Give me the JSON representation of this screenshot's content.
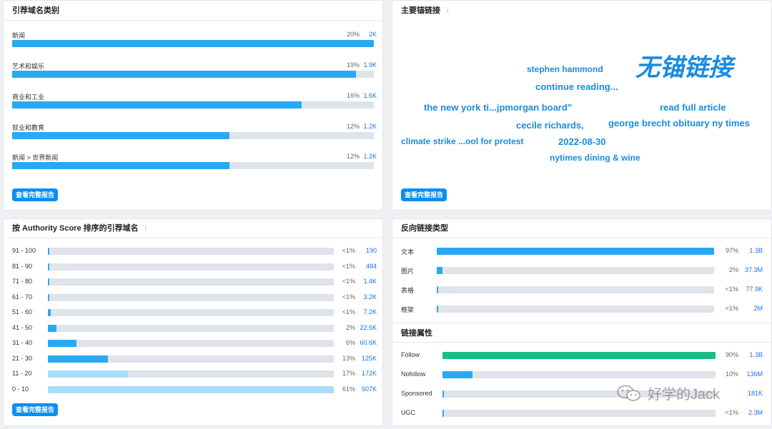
{
  "referring_categories": {
    "title": "引荐域名类别",
    "items": [
      {
        "label": "新闻",
        "percent": "20%",
        "value": "2K",
        "fill": 1.0
      },
      {
        "label": "艺术和娱乐",
        "percent": "19%",
        "value": "1.9K",
        "fill": 0.95
      },
      {
        "label": "商业和工业",
        "percent": "16%",
        "value": "1.6K",
        "fill": 0.8
      },
      {
        "label": "就业和教育",
        "percent": "12%",
        "value": "1.2K",
        "fill": 0.6
      },
      {
        "label": "新闻 > 世界新闻",
        "percent": "12%",
        "value": "1.2K",
        "fill": 0.6
      }
    ],
    "button": "查看完整报告"
  },
  "top_anchors": {
    "title": "主要锚链接",
    "info_icon": "i",
    "words": [
      {
        "text": "无锚链接"
      },
      {
        "text": "stephen hammond"
      },
      {
        "text": "continue reading..."
      },
      {
        "text": "the new york ti...jpmorgan board”"
      },
      {
        "text": "read full article"
      },
      {
        "text": "cecile richards,"
      },
      {
        "text": "george brecht obituary ny times"
      },
      {
        "text": "climate strike ...ool for protest"
      },
      {
        "text": "2022-08-30"
      },
      {
        "text": "nytimes dining & wine"
      }
    ],
    "button": "查看完整报告"
  },
  "authority": {
    "title": "按 Authority Score 排序的引荐域名",
    "info_icon": "i",
    "rows": [
      {
        "label": "91 - 100",
        "percent": "<1%",
        "value": "190",
        "fill": 0.005,
        "tone": "dark"
      },
      {
        "label": "81 - 90",
        "percent": "<1%",
        "value": "484",
        "fill": 0.005,
        "tone": "dark"
      },
      {
        "label": "71 - 80",
        "percent": "<1%",
        "value": "1.4K",
        "fill": 0.005,
        "tone": "dark"
      },
      {
        "label": "61 - 70",
        "percent": "<1%",
        "value": "3.2K",
        "fill": 0.006,
        "tone": "dark"
      },
      {
        "label": "51 - 60",
        "percent": "<1%",
        "value": "7.2K",
        "fill": 0.01,
        "tone": "dark"
      },
      {
        "label": "41 - 50",
        "percent": "2%",
        "value": "22.6K",
        "fill": 0.03,
        "tone": "dark"
      },
      {
        "label": "31 - 40",
        "percent": "6%",
        "value": "60.6K",
        "fill": 0.1,
        "tone": "dark"
      },
      {
        "label": "21 - 30",
        "percent": "13%",
        "value": "125K",
        "fill": 0.21,
        "tone": "dark"
      },
      {
        "label": "11 - 20",
        "percent": "17%",
        "value": "172K",
        "fill": 0.28,
        "tone": "light"
      },
      {
        "label": "0 - 10",
        "percent": "61%",
        "value": "607K",
        "fill": 1.0,
        "tone": "light"
      }
    ],
    "button": "查看完整报告"
  },
  "backlink_types": {
    "title": "反向链接类型",
    "rows": [
      {
        "label": "文本",
        "percent": "97%",
        "value": "1.3B",
        "fill": 1.0
      },
      {
        "label": "图片",
        "percent": "2%",
        "value": "37.3M",
        "fill": 0.02
      },
      {
        "label": "表格",
        "percent": "<1%",
        "value": "77.9K",
        "fill": 0.004
      },
      {
        "label": "框架",
        "percent": "<1%",
        "value": "2M",
        "fill": 0.004
      }
    ]
  },
  "link_attributes": {
    "title": "链接属性",
    "rows": [
      {
        "label": "Follow",
        "percent": "90%",
        "value": "1.3B",
        "fill": 1.0,
        "tone": "green"
      },
      {
        "label": "Nofollow",
        "percent": "10%",
        "value": "136M",
        "fill": 0.11,
        "tone": "blue"
      },
      {
        "label": "Sponsored",
        "percent": "",
        "value": "181K",
        "fill": 0.005,
        "tone": "blue"
      },
      {
        "label": "UGC",
        "percent": "<1%",
        "value": "2.3M",
        "fill": 0.005,
        "tone": "blue"
      }
    ]
  },
  "watermark": {
    "text": "好学的Jack",
    "icon": "wechat-icon"
  },
  "colors": {
    "bar_blue": "#2aa9f2",
    "bar_light": "#a9dcf9",
    "bar_green": "#1bbc8a",
    "link_blue": "#1a73e8",
    "button_blue": "#0b8ef2"
  }
}
